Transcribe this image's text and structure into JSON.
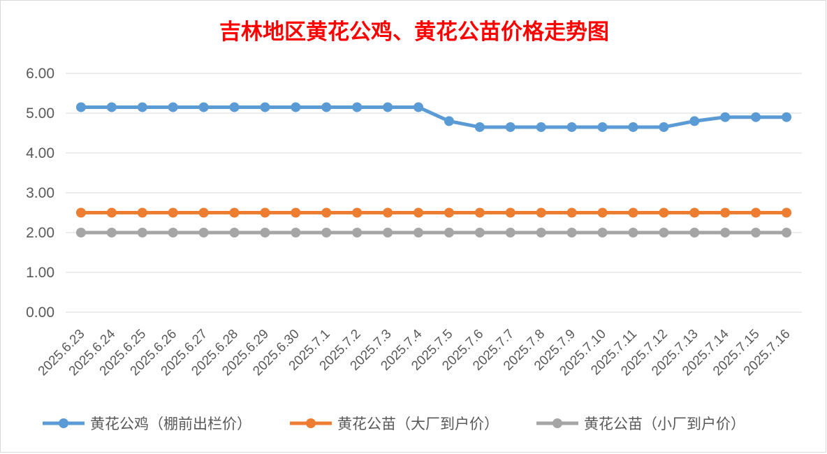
{
  "chart_data": {
    "type": "line",
    "title": "吉林地区黄花公鸡、黄花公苗价格走势图",
    "xlabel": "",
    "ylabel": "",
    "categories": [
      "2025.6.23",
      "2025.6.24",
      "2025.6.25",
      "2025.6.26",
      "2025.6.27",
      "2025.6.28",
      "2025.6.29",
      "2025.6.30",
      "2025.7.1",
      "2025.7.2",
      "2025.7.3",
      "2025.7.4",
      "2025.7.5",
      "2025.7.6",
      "2025.7.7",
      "2025.7.8",
      "2025.7.9",
      "2025.7.10",
      "2025.7.11",
      "2025.7.12",
      "2025.7.13",
      "2025.7.14",
      "2025.7.15",
      "2025.7.16"
    ],
    "ylim": [
      0,
      6
    ],
    "yticks": [
      "0.00",
      "1.00",
      "2.00",
      "3.00",
      "4.00",
      "5.00",
      "6.00"
    ],
    "grid": true,
    "legend_position": "bottom",
    "series": [
      {
        "name": "黄花公鸡（棚前出栏价）",
        "color": "#5b9bd5",
        "values": [
          5.15,
          5.15,
          5.15,
          5.15,
          5.15,
          5.15,
          5.15,
          5.15,
          5.15,
          5.15,
          5.15,
          5.15,
          4.8,
          4.65,
          4.65,
          4.65,
          4.65,
          4.65,
          4.65,
          4.65,
          4.8,
          4.9,
          4.9,
          4.9
        ]
      },
      {
        "name": "黄花公苗（大厂到户价）",
        "color": "#ed7d31",
        "values": [
          2.5,
          2.5,
          2.5,
          2.5,
          2.5,
          2.5,
          2.5,
          2.5,
          2.5,
          2.5,
          2.5,
          2.5,
          2.5,
          2.5,
          2.5,
          2.5,
          2.5,
          2.5,
          2.5,
          2.5,
          2.5,
          2.5,
          2.5,
          2.5
        ]
      },
      {
        "name": "黄花公苗（小厂到户价）",
        "color": "#a5a5a5",
        "values": [
          2.0,
          2.0,
          2.0,
          2.0,
          2.0,
          2.0,
          2.0,
          2.0,
          2.0,
          2.0,
          2.0,
          2.0,
          2.0,
          2.0,
          2.0,
          2.0,
          2.0,
          2.0,
          2.0,
          2.0,
          2.0,
          2.0,
          2.0,
          2.0
        ]
      }
    ]
  }
}
